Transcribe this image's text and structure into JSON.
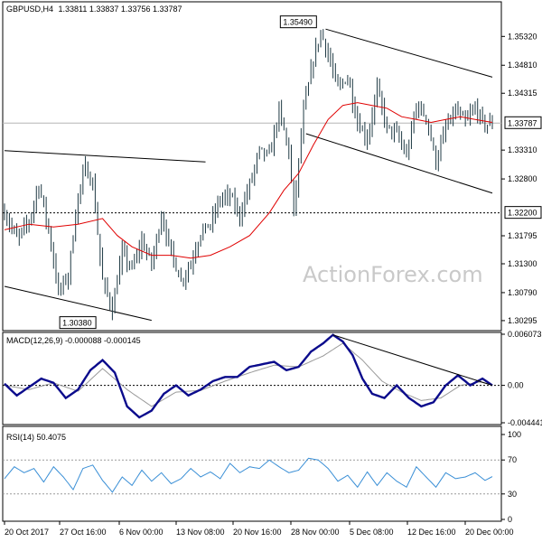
{
  "chart_data": {
    "type": "line",
    "title": "GBPUSD,H4",
    "ohlc": "1.33811 1.33837 1.33756 1.33787",
    "watermark": "ActionForex.com",
    "x_tick_labels": [
      "20 Oct 2017",
      "27 Oct 16:00",
      "6 Nov 00:00",
      "13 Nov 08:00",
      "20 Nov 16:00",
      "28 Nov 00:00",
      "5 Dec 08:00",
      "12 Dec 16:00",
      "20 Dec 00:00"
    ],
    "price": {
      "y_ticks": [
        "1.35320",
        "1.34810",
        "1.34315",
        "1.33310",
        "1.32800",
        "1.31795",
        "1.31300",
        "1.30790",
        "1.30295"
      ],
      "ylim": [
        1.3015,
        1.359
      ],
      "current_label": "1.33787",
      "current_value": 1.33787,
      "support_label": "1.32200",
      "support_value": 1.322,
      "annotations": [
        {
          "text": "1.35490",
          "value": 1.3549,
          "bar": 128
        },
        {
          "text": "1.30380",
          "value": 1.3038,
          "bar": 38
        }
      ],
      "bars": 200,
      "close_path": [
        [
          0,
          1.322
        ],
        [
          5,
          1.3175
        ],
        [
          10,
          1.3205
        ],
        [
          14,
          1.327
        ],
        [
          18,
          1.319
        ],
        [
          22,
          1.308
        ],
        [
          26,
          1.311
        ],
        [
          30,
          1.325
        ],
        [
          33,
          1.33
        ],
        [
          36,
          1.327
        ],
        [
          40,
          1.31
        ],
        [
          44,
          1.305
        ],
        [
          48,
          1.315
        ],
        [
          52,
          1.312
        ],
        [
          56,
          1.317
        ],
        [
          60,
          1.313
        ],
        [
          64,
          1.3215
        ],
        [
          68,
          1.315
        ],
        [
          72,
          1.31
        ],
        [
          76,
          1.313
        ],
        [
          80,
          1.3185
        ],
        [
          84,
          1.32
        ],
        [
          88,
          1.3245
        ],
        [
          92,
          1.325
        ],
        [
          96,
          1.3215
        ],
        [
          100,
          1.327
        ],
        [
          104,
          1.333
        ],
        [
          108,
          1.332
        ],
        [
          112,
          1.34
        ],
        [
          116,
          1.333
        ],
        [
          118,
          1.322
        ],
        [
          122,
          1.34
        ],
        [
          126,
          1.349
        ],
        [
          129,
          1.354
        ],
        [
          132,
          1.35
        ],
        [
          136,
          1.344
        ],
        [
          140,
          1.346
        ],
        [
          144,
          1.338
        ],
        [
          148,
          1.335
        ],
        [
          152,
          1.344
        ],
        [
          156,
          1.337
        ],
        [
          160,
          1.336
        ],
        [
          164,
          1.332
        ],
        [
          168,
          1.341
        ],
        [
          172,
          1.339
        ],
        [
          176,
          1.331
        ],
        [
          180,
          1.337
        ],
        [
          184,
          1.34
        ],
        [
          188,
          1.338
        ],
        [
          192,
          1.3405
        ],
        [
          196,
          1.3375
        ],
        [
          199,
          1.33787
        ]
      ],
      "ma_path": [
        [
          0,
          1.319
        ],
        [
          10,
          1.32
        ],
        [
          20,
          1.3195
        ],
        [
          30,
          1.32
        ],
        [
          40,
          1.321
        ],
        [
          46,
          1.318
        ],
        [
          52,
          1.316
        ],
        [
          60,
          1.3145
        ],
        [
          68,
          1.3145
        ],
        [
          76,
          1.314
        ],
        [
          84,
          1.3145
        ],
        [
          92,
          1.316
        ],
        [
          100,
          1.318
        ],
        [
          108,
          1.322
        ],
        [
          114,
          1.326
        ],
        [
          120,
          1.329
        ],
        [
          126,
          1.334
        ],
        [
          132,
          1.3385
        ],
        [
          138,
          1.341
        ],
        [
          144,
          1.3415
        ],
        [
          150,
          1.341
        ],
        [
          156,
          1.3405
        ],
        [
          162,
          1.339
        ],
        [
          168,
          1.3385
        ],
        [
          174,
          1.338
        ],
        [
          180,
          1.3385
        ],
        [
          186,
          1.339
        ],
        [
          192,
          1.3385
        ],
        [
          199,
          1.338
        ]
      ],
      "trendlines": [
        {
          "from": [
            0,
            1.333
          ],
          "to": [
            82,
            1.331
          ]
        },
        {
          "from": [
            0,
            1.309
          ],
          "to": [
            60,
            1.303
          ]
        },
        {
          "from": [
            131,
            1.3545
          ],
          "to": [
            199,
            1.346
          ]
        },
        {
          "from": [
            123,
            1.336
          ],
          "to": [
            199,
            1.3255
          ]
        }
      ]
    },
    "macd": {
      "title": "MACD(12,26,9) -0.000088 -0.000145",
      "y_ticks": [
        "0.006073",
        "0.00",
        "-0.004441"
      ],
      "ylim": [
        -0.004441,
        0.006073
      ],
      "main_path": [
        [
          0,
          0.0002
        ],
        [
          5,
          -0.0012
        ],
        [
          10,
          -0.0002
        ],
        [
          15,
          0.0008
        ],
        [
          20,
          0.0003
        ],
        [
          25,
          -0.0015
        ],
        [
          30,
          -0.0005
        ],
        [
          35,
          0.0018
        ],
        [
          40,
          0.003
        ],
        [
          45,
          0.0015
        ],
        [
          50,
          -0.0025
        ],
        [
          55,
          -0.0038
        ],
        [
          60,
          -0.003
        ],
        [
          65,
          -0.001
        ],
        [
          70,
          0.0
        ],
        [
          75,
          -0.0012
        ],
        [
          80,
          -0.0005
        ],
        [
          85,
          0.0005
        ],
        [
          90,
          0.001
        ],
        [
          95,
          0.001
        ],
        [
          100,
          0.0022
        ],
        [
          105,
          0.0025
        ],
        [
          110,
          0.0028
        ],
        [
          115,
          0.0018
        ],
        [
          120,
          0.0022
        ],
        [
          125,
          0.004
        ],
        [
          130,
          0.005
        ],
        [
          134,
          0.006
        ],
        [
          138,
          0.0052
        ],
        [
          142,
          0.0036
        ],
        [
          146,
          0.0008
        ],
        [
          150,
          -0.001
        ],
        [
          155,
          -0.0015
        ],
        [
          160,
          0.0
        ],
        [
          165,
          -0.0015
        ],
        [
          170,
          -0.0025
        ],
        [
          175,
          -0.002
        ],
        [
          180,
          0.0
        ],
        [
          185,
          0.0012
        ],
        [
          190,
          0.0
        ],
        [
          195,
          0.0008
        ],
        [
          199,
          0.0
        ]
      ],
      "signal_path": [
        [
          0,
          0.0
        ],
        [
          10,
          -0.0005
        ],
        [
          20,
          0.0003
        ],
        [
          30,
          -0.0007
        ],
        [
          40,
          0.002
        ],
        [
          50,
          -0.0005
        ],
        [
          60,
          -0.0025
        ],
        [
          70,
          -0.0008
        ],
        [
          80,
          -0.0006
        ],
        [
          90,
          0.0005
        ],
        [
          100,
          0.0015
        ],
        [
          110,
          0.0024
        ],
        [
          120,
          0.0022
        ],
        [
          130,
          0.0035
        ],
        [
          138,
          0.005
        ],
        [
          146,
          0.003
        ],
        [
          154,
          0.0005
        ],
        [
          162,
          -0.0008
        ],
        [
          170,
          -0.0018
        ],
        [
          178,
          -0.0015
        ],
        [
          186,
          0.0
        ],
        [
          194,
          0.0004
        ],
        [
          199,
          0.0001
        ]
      ],
      "trendline": {
        "from": [
          134,
          0.006
        ],
        "to": [
          199,
          0.0
        ]
      }
    },
    "rsi": {
      "title": "RSI(14) 50.4075",
      "y_ticks": [
        "100",
        "70",
        "30",
        "0"
      ],
      "ylim": [
        0,
        100
      ],
      "levels": [
        70,
        30
      ],
      "path": [
        [
          0,
          48
        ],
        [
          4,
          62
        ],
        [
          8,
          55
        ],
        [
          12,
          60
        ],
        [
          16,
          44
        ],
        [
          20,
          62
        ],
        [
          24,
          50
        ],
        [
          28,
          35
        ],
        [
          32,
          60
        ],
        [
          36,
          64
        ],
        [
          40,
          46
        ],
        [
          44,
          32
        ],
        [
          48,
          50
        ],
        [
          52,
          40
        ],
        [
          56,
          58
        ],
        [
          60,
          45
        ],
        [
          64,
          55
        ],
        [
          68,
          42
        ],
        [
          72,
          48
        ],
        [
          76,
          60
        ],
        [
          80,
          50
        ],
        [
          84,
          56
        ],
        [
          88,
          48
        ],
        [
          92,
          66
        ],
        [
          96,
          55
        ],
        [
          100,
          62
        ],
        [
          104,
          60
        ],
        [
          108,
          70
        ],
        [
          112,
          62
        ],
        [
          116,
          55
        ],
        [
          120,
          58
        ],
        [
          124,
          72
        ],
        [
          128,
          70
        ],
        [
          132,
          60
        ],
        [
          136,
          45
        ],
        [
          140,
          52
        ],
        [
          144,
          38
        ],
        [
          148,
          56
        ],
        [
          152,
          40
        ],
        [
          156,
          55
        ],
        [
          160,
          45
        ],
        [
          164,
          38
        ],
        [
          168,
          62
        ],
        [
          172,
          50
        ],
        [
          176,
          38
        ],
        [
          180,
          55
        ],
        [
          184,
          48
        ],
        [
          188,
          50
        ],
        [
          192,
          55
        ],
        [
          196,
          46
        ],
        [
          199,
          50.4
        ]
      ]
    }
  }
}
